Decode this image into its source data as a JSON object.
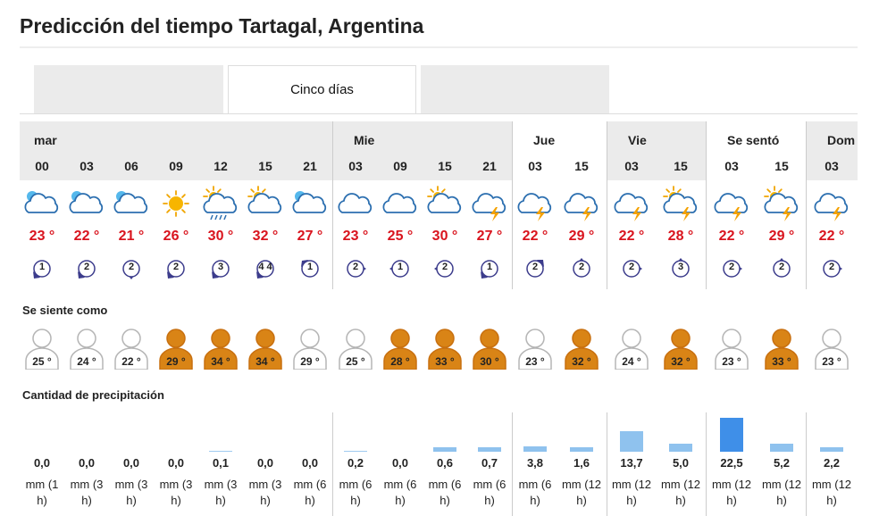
{
  "page": {
    "title": "Predicción del tiempo Tartagal, Argentina"
  },
  "tabs": [
    {
      "label": ""
    },
    {
      "label": "Cinco días"
    },
    {
      "label": ""
    }
  ],
  "sections": {
    "feels_like": "Se siente como",
    "precip": "Cantidad de precipitación"
  },
  "days": [
    {
      "name": "mar",
      "shaded": true
    },
    {
      "name": "Mie",
      "shaded": true
    },
    {
      "name": "Jue",
      "shaded": false
    },
    {
      "name": "Vie",
      "shaded": true
    },
    {
      "name": "Se sentó",
      "shaded": false
    },
    {
      "name": "Dom",
      "shaded": true
    }
  ],
  "colors": {
    "temp": "#d9141e",
    "feel_hot": "#d98416",
    "feel_mild": "#ffffff",
    "bar": "#8fc2ee",
    "bar_heavy": "#3f8fe8",
    "wind": "#3c3c8c"
  },
  "columns": [
    {
      "hour": "00",
      "icon": "moon-cloud-icon",
      "temp": "23 °",
      "wind": "1",
      "wind_dir": "sw-arrow",
      "feel": "25 °",
      "hot": false,
      "precip": "0,0",
      "unit1": "mm (1",
      "unit2": "h)",
      "amount": 0
    },
    {
      "hour": "03",
      "icon": "moon-cloud-icon",
      "temp": "22 °",
      "wind": "2",
      "wind_dir": "sw-arrow",
      "feel": "24 °",
      "hot": false,
      "precip": "0,0",
      "unit1": "mm (3",
      "unit2": "h)",
      "amount": 0
    },
    {
      "hour": "06",
      "icon": "moon-cloud-icon",
      "temp": "21 °",
      "wind": "2",
      "wind_dir": "s-arrow",
      "feel": "22 °",
      "hot": false,
      "precip": "0,0",
      "unit1": "mm (3",
      "unit2": "h)",
      "amount": 0
    },
    {
      "hour": "09",
      "icon": "sun-icon",
      "temp": "26 °",
      "wind": "2",
      "wind_dir": "sw-arrow",
      "feel": "29 °",
      "hot": true,
      "precip": "0,0",
      "unit1": "mm (3",
      "unit2": "h)",
      "amount": 0
    },
    {
      "hour": "12",
      "icon": "sun-cloud-rain-icon",
      "temp": "30 °",
      "wind": "3",
      "wind_dir": "sw-arrow",
      "feel": "34 °",
      "hot": true,
      "precip": "0,1",
      "unit1": "mm (3",
      "unit2": "h)",
      "amount": 0.1
    },
    {
      "hour": "15",
      "icon": "sun-cloud-icon",
      "temp": "32 °",
      "wind": "4 4",
      "wind_dir": "sw-arrow",
      "feel": "34 °",
      "hot": true,
      "precip": "0,0",
      "unit1": "mm (3",
      "unit2": "h)",
      "amount": 0
    },
    {
      "hour": "21",
      "icon": "moon-cloud-icon",
      "temp": "27 °",
      "wind": "1",
      "wind_dir": "nw-arrow",
      "feel": "29 °",
      "hot": false,
      "precip": "0,0",
      "unit1": "mm (6",
      "unit2": "h)",
      "amount": 0
    },
    {
      "hour": "03",
      "icon": "cloud-icon",
      "temp": "23 °",
      "wind": "2",
      "wind_dir": "e-arrow",
      "feel": "25 °",
      "hot": false,
      "precip": "0,2",
      "unit1": "mm (6",
      "unit2": "h)",
      "amount": 0.2
    },
    {
      "hour": "09",
      "icon": "cloud-icon",
      "temp": "25 °",
      "wind": "1",
      "wind_dir": "w-arrow",
      "feel": "28 °",
      "hot": true,
      "precip": "0,0",
      "unit1": "mm (6",
      "unit2": "h)",
      "amount": 0
    },
    {
      "hour": "15",
      "icon": "sun-cloud-icon",
      "temp": "30 °",
      "wind": "2",
      "wind_dir": "w-arrow",
      "feel": "33 °",
      "hot": true,
      "precip": "0,6",
      "unit1": "mm (6",
      "unit2": "h)",
      "amount": 0.6
    },
    {
      "hour": "21",
      "icon": "cloud-storm-icon",
      "temp": "27 °",
      "wind": "1",
      "wind_dir": "sw-arrow",
      "feel": "30 °",
      "hot": true,
      "precip": "0,7",
      "unit1": "mm (6",
      "unit2": "h)",
      "amount": 0.7
    },
    {
      "hour": "03",
      "icon": "cloud-storm-icon",
      "temp": "22 °",
      "wind": "2",
      "wind_dir": "ne-arrow",
      "feel": "23 °",
      "hot": false,
      "precip": "3,8",
      "unit1": "mm (6",
      "unit2": "h)",
      "amount": 3.8
    },
    {
      "hour": "15",
      "icon": "cloud-storm-icon",
      "temp": "29 °",
      "wind": "2",
      "wind_dir": "n-arrow",
      "feel": "32 °",
      "hot": true,
      "precip": "1,6",
      "unit1": "mm (12",
      "unit2": "h)",
      "amount": 1.6
    },
    {
      "hour": "03",
      "icon": "cloud-storm-icon",
      "temp": "22 °",
      "wind": "2",
      "wind_dir": "e-arrow",
      "feel": "24 °",
      "hot": false,
      "precip": "13,7",
      "unit1": "mm (12",
      "unit2": "h)",
      "amount": 13.7
    },
    {
      "hour": "15",
      "icon": "sun-cloud-storm-icon",
      "temp": "28 °",
      "wind": "3",
      "wind_dir": "n-arrow",
      "feel": "32 °",
      "hot": true,
      "precip": "5,0",
      "unit1": "mm (12",
      "unit2": "h)",
      "amount": 5.0
    },
    {
      "hour": "03",
      "icon": "cloud-storm-icon",
      "temp": "22 °",
      "wind": "2",
      "wind_dir": "e-arrow",
      "feel": "23 °",
      "hot": false,
      "precip": "22,5",
      "unit1": "mm (12",
      "unit2": "h)",
      "amount": 22.5
    },
    {
      "hour": "15",
      "icon": "sun-cloud-storm-icon",
      "temp": "29 °",
      "wind": "2",
      "wind_dir": "n-arrow",
      "feel": "33 °",
      "hot": true,
      "precip": "5,2",
      "unit1": "mm (12",
      "unit2": "h)",
      "amount": 5.2
    },
    {
      "hour": "03",
      "icon": "cloud-storm-icon",
      "temp": "22 °",
      "wind": "2",
      "wind_dir": "e-arrow",
      "feel": "23 °",
      "hot": false,
      "precip": "2,2",
      "unit1": "mm (12",
      "unit2": "h)",
      "amount": 2.2
    }
  ]
}
